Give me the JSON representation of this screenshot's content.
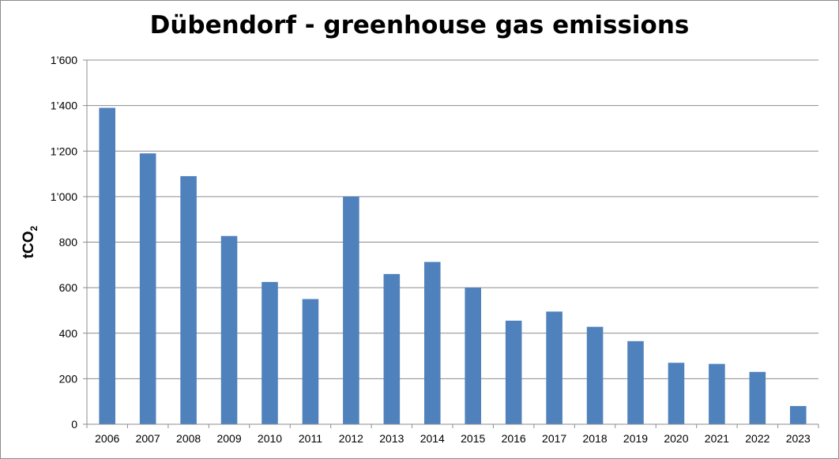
{
  "chart_data": {
    "type": "bar",
    "title": "Dübendorf - greenhouse gas emissions",
    "ylabel": "tCO",
    "ylabel_subscript": "2",
    "xlabel": "",
    "categories": [
      "2006",
      "2007",
      "2008",
      "2009",
      "2010",
      "2011",
      "2012",
      "2013",
      "2014",
      "2015",
      "2016",
      "2017",
      "2018",
      "2019",
      "2020",
      "2021",
      "2022",
      "2023"
    ],
    "values": [
      1390,
      1190,
      1090,
      827,
      625,
      550,
      1000,
      660,
      713,
      600,
      455,
      495,
      428,
      365,
      270,
      265,
      230,
      80
    ],
    "ylim": [
      0,
      1600
    ],
    "yticks": [
      0,
      200,
      400,
      600,
      800,
      1000,
      1200,
      1400,
      1600
    ],
    "ytick_labels": [
      "0",
      "200",
      "400",
      "600",
      "800",
      "1’000",
      "1’200",
      "1’400",
      "1’600"
    ],
    "grid": true,
    "bar_color": "#4f81bd",
    "grid_color": "#8c8c8c"
  }
}
